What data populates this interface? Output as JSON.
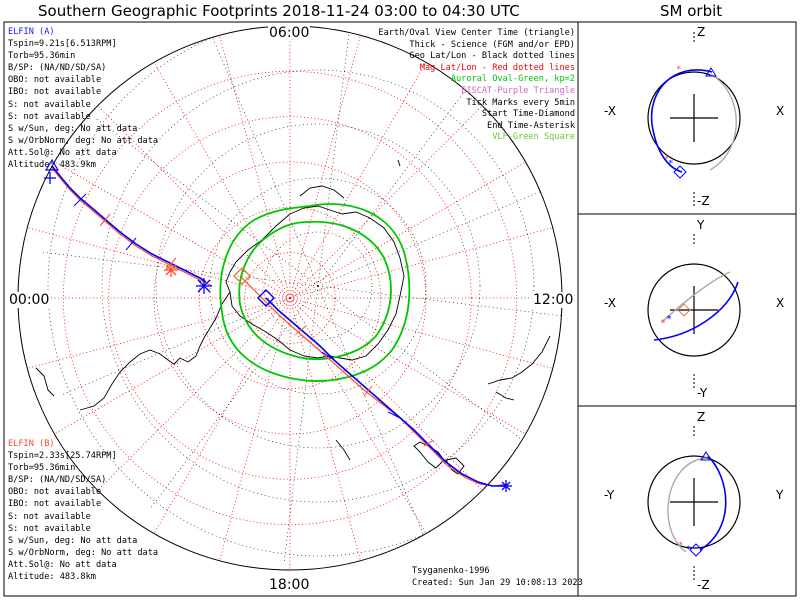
{
  "title": "Southern Geographic Footprints 2018-11-24 03:00 to 04:30 UTC",
  "orbit_title": "SM orbit",
  "probe_a": {
    "name": "ELFIN (A)",
    "lines": [
      "Tspin=9.21s[6.513RPM]",
      "Torb=95.36min",
      "B/SP: (NA/ND/SD/SA)",
      "OBO: not available",
      "IBO: not available",
      "S: not available",
      "S: not available",
      "S w/Sun, deg: No att data",
      "S w/OrbNorm, deg: No att data",
      "Att.Sol@: No att data",
      "Altitude: 483.9km"
    ]
  },
  "probe_b": {
    "name": "ELFIN (B)",
    "lines": [
      "Tspin=2.33s[25.74RPM]",
      "Torb=95.36min",
      "B/SP: (NA/ND/SD/SA)",
      "OBO: not available",
      "IBO: not available",
      "S: not available",
      "S: not available",
      "S w/Sun, deg: No att data",
      "S w/OrbNorm, deg: No att data",
      "Att.Sol@: No att data",
      "Altitude: 483.8km"
    ]
  },
  "legend": [
    {
      "text": "Earth/Oval View Center Time (triangle)",
      "color": "#000000"
    },
    {
      "text": "Thick - Science (FGM and/or EPD)",
      "color": "#000000"
    },
    {
      "text": "Geo Lat/Lon - Black dotted lines",
      "color": "#000000"
    },
    {
      "text": "Mag Lat/Lon - Red dotted lines",
      "color": "#ff0000"
    },
    {
      "text": "Auroral Oval-Green, kp=2",
      "color": "#00c800"
    },
    {
      "text": "EISCAT-Purple Triangle",
      "color": "#cc66cc"
    },
    {
      "text": "Tick Marks every 5min",
      "color": "#000000"
    },
    {
      "text": "Start Time-Diamond",
      "color": "#000000"
    },
    {
      "text": "End Time-Asterisk",
      "color": "#000000"
    },
    {
      "text": "VLF-Green Square",
      "color": "#66cc33"
    }
  ],
  "time_labels": {
    "top": "06:00",
    "left": "00:00",
    "right": "12:00",
    "bottom": "18:00"
  },
  "credit": [
    "Tsyganenko-1996",
    "Created: Sun Jan 29 10:08:13 2023"
  ],
  "orbit_panels": [
    {
      "top": "Z",
      "bottom": "-Z",
      "left": "-X",
      "right": "X"
    },
    {
      "top": "Y",
      "bottom": "-Y",
      "left": "-X",
      "right": "X"
    },
    {
      "top": "Z",
      "bottom": "-Z",
      "left": "-Y",
      "right": "Y"
    }
  ],
  "colors": {
    "probe_a": "#0000ff",
    "probe_b": "#ff4d2e",
    "mag_grid": "#ff0000",
    "geo_grid": "#000000",
    "oval": "#00c800"
  }
}
